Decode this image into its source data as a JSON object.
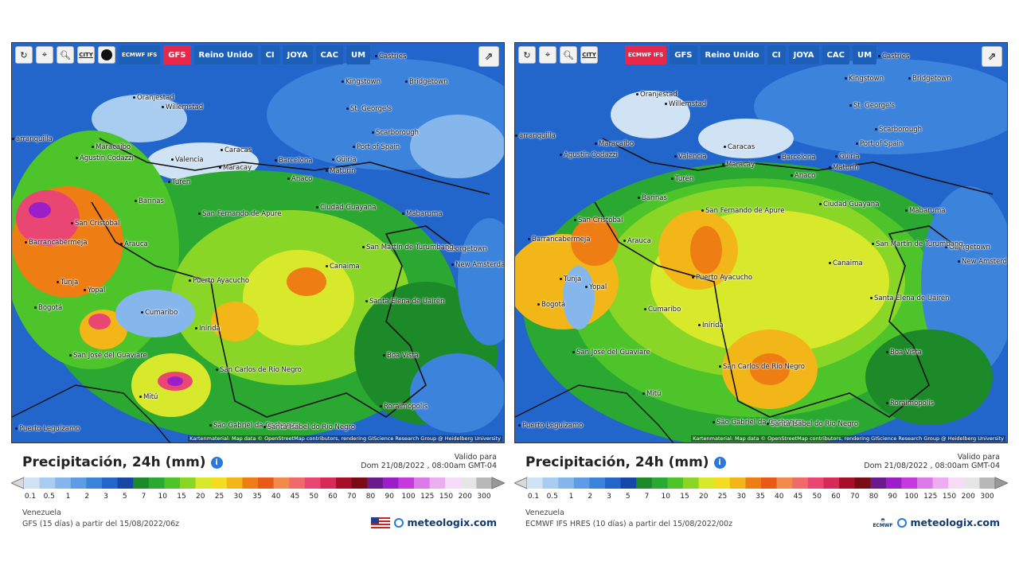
{
  "scale_colors": [
    "#cfe3f5",
    "#a8cdf0",
    "#86b7ec",
    "#5e9de6",
    "#3c83dc",
    "#2266cc",
    "#1646a6",
    "#1c8a28",
    "#2aa832",
    "#4cc42a",
    "#8ad626",
    "#d8e82a",
    "#f5dc22",
    "#f3b618",
    "#ee7e14",
    "#e85a16",
    "#f28a4e",
    "#f06a6a",
    "#ea4673",
    "#d82a58",
    "#a8102a",
    "#7a0a14",
    "#6a1a8a",
    "#9c1ec8",
    "#c63ae0",
    "#dc7ae8",
    "#ecaef0",
    "#f6dcf6",
    "#e6e6e6",
    "#b8b8b8"
  ],
  "scale_ticks": [
    "0.1",
    "0.5",
    "1",
    "2",
    "3",
    "5",
    "7",
    "10",
    "15",
    "20",
    "25",
    "30",
    "35",
    "40",
    "45",
    "50",
    "60",
    "70",
    "80",
    "90",
    "100",
    "125",
    "150",
    "200",
    "300"
  ],
  "panels": [
    {
      "id": "left",
      "toolbar": {
        "city_label": "CITY",
        "models": [
          {
            "label": "ECMWF IFS",
            "active": false,
            "small": true
          },
          {
            "label": "GFS",
            "active": true,
            "small": false
          },
          {
            "label": "Reino Unido",
            "active": false,
            "small": false
          },
          {
            "label": "CI",
            "active": false,
            "small": false
          },
          {
            "label": "JOYA",
            "active": false,
            "small": false
          },
          {
            "label": "CAC",
            "active": false,
            "small": false
          },
          {
            "label": "UM",
            "active": false,
            "small": false
          }
        ]
      },
      "attribution": "Kartenmaterial: Map data © OpenStreetMap contributors, rendering GIScience Research Group @ Heidelberg University",
      "title": "Precipitación, 24h (mm)",
      "valid_label": "Valido para",
      "valid_date": "Dom 21/08/2022 , 08:00am GMT-04",
      "region": "Venezuela",
      "source": "GFS  (15 días)  a partir del 15/08/2022/06z",
      "brand": "meteologix.com",
      "cities": [
        "Castries",
        "Kingstown",
        "Bridgetown",
        "Oranjestad",
        "Willemstad",
        "St. George's",
        "Scarborough",
        "Port of Spain",
        "arranquilla",
        "Maracaibo",
        "Agustín Codazzi",
        "Caracas",
        "Valencia",
        "Maracay",
        "Barcelona",
        "Güiria",
        "Anaco",
        "Maturín",
        "Turén",
        "Barinas",
        "San Fernando de Apure",
        "Ciudad Guayana",
        "Mabaruma",
        "San Cristóbal",
        "Barrancabermeja",
        "Arauca",
        "Georgetown",
        "San Martín de Turumbang",
        "New Amsterdam",
        "Canaima",
        "Tunja",
        "Yopal",
        "Puerto Ayacucho",
        "Bogotá",
        "Cumaribo",
        "Santa Elena de Uairén",
        "Inírida",
        "Boa Vista",
        "San José del Guaviare",
        "San Carlos de Río Negro",
        "Mitú",
        "Roraimópolis",
        "Puerto Leguízamo",
        "São Gabriel da Cachoeira",
        "Santa Isabel do Rio Negro"
      ]
    },
    {
      "id": "right",
      "toolbar": {
        "city_label": "CITY",
        "models": [
          {
            "label": "ECMWF IFS",
            "active": true,
            "small": true
          },
          {
            "label": "GFS",
            "active": false,
            "small": false
          },
          {
            "label": "Reino Unido",
            "active": false,
            "small": false
          },
          {
            "label": "CI",
            "active": false,
            "small": false
          },
          {
            "label": "JOYA",
            "active": false,
            "small": false
          },
          {
            "label": "CAC",
            "active": false,
            "small": false
          },
          {
            "label": "UM",
            "active": false,
            "small": false
          }
        ]
      },
      "attribution": "Kartenmaterial: Map data © OpenStreetMap contributors, rendering GIScience Research Group @ Heidelberg University",
      "title": "Precipitación, 24h (mm)",
      "valid_label": "Valido para",
      "valid_date": "Dom 21/08/2022 , 08:00am GMT-04",
      "region": "Venezuela",
      "source": "ECMWF IFS HRES  (10 días)  a partir del 15/08/2022/00z",
      "brand": "meteologix.com",
      "ecmwf_label": "ECMWF",
      "cities": [
        "Castries",
        "Kingstown",
        "Bridgetown",
        "Oranjestad",
        "Willemstad",
        "St. George's",
        "Scarborough",
        "Port of Spain",
        "arranquilla",
        "Maracaibo",
        "Agustín Codazzi",
        "Caracas",
        "Valencia",
        "Maracay",
        "Barcelona",
        "Güiria",
        "Anaco",
        "Maturín",
        "Turén",
        "Barinas",
        "San Fernando de Apure",
        "Ciudad Guayana",
        "Mabaruma",
        "San Cristóbal",
        "Barrancabermeja",
        "Arauca",
        "Georgetown",
        "San Martín de Turumbang",
        "New Amsterdam",
        "Canaima",
        "Tunja",
        "Yopal",
        "Puerto Ayacucho",
        "Bogotá",
        "Cumaribo",
        "Santa Elena de Uairén",
        "Inírida",
        "Boa Vista",
        "San José del Guaviare",
        "San Carlos de Río Negro",
        "Mitú",
        "Roraimópolis",
        "Puerto Leguízamo",
        "São Gabriel da Cachoeira",
        "Santa Isabel do Rio Negro"
      ]
    }
  ]
}
